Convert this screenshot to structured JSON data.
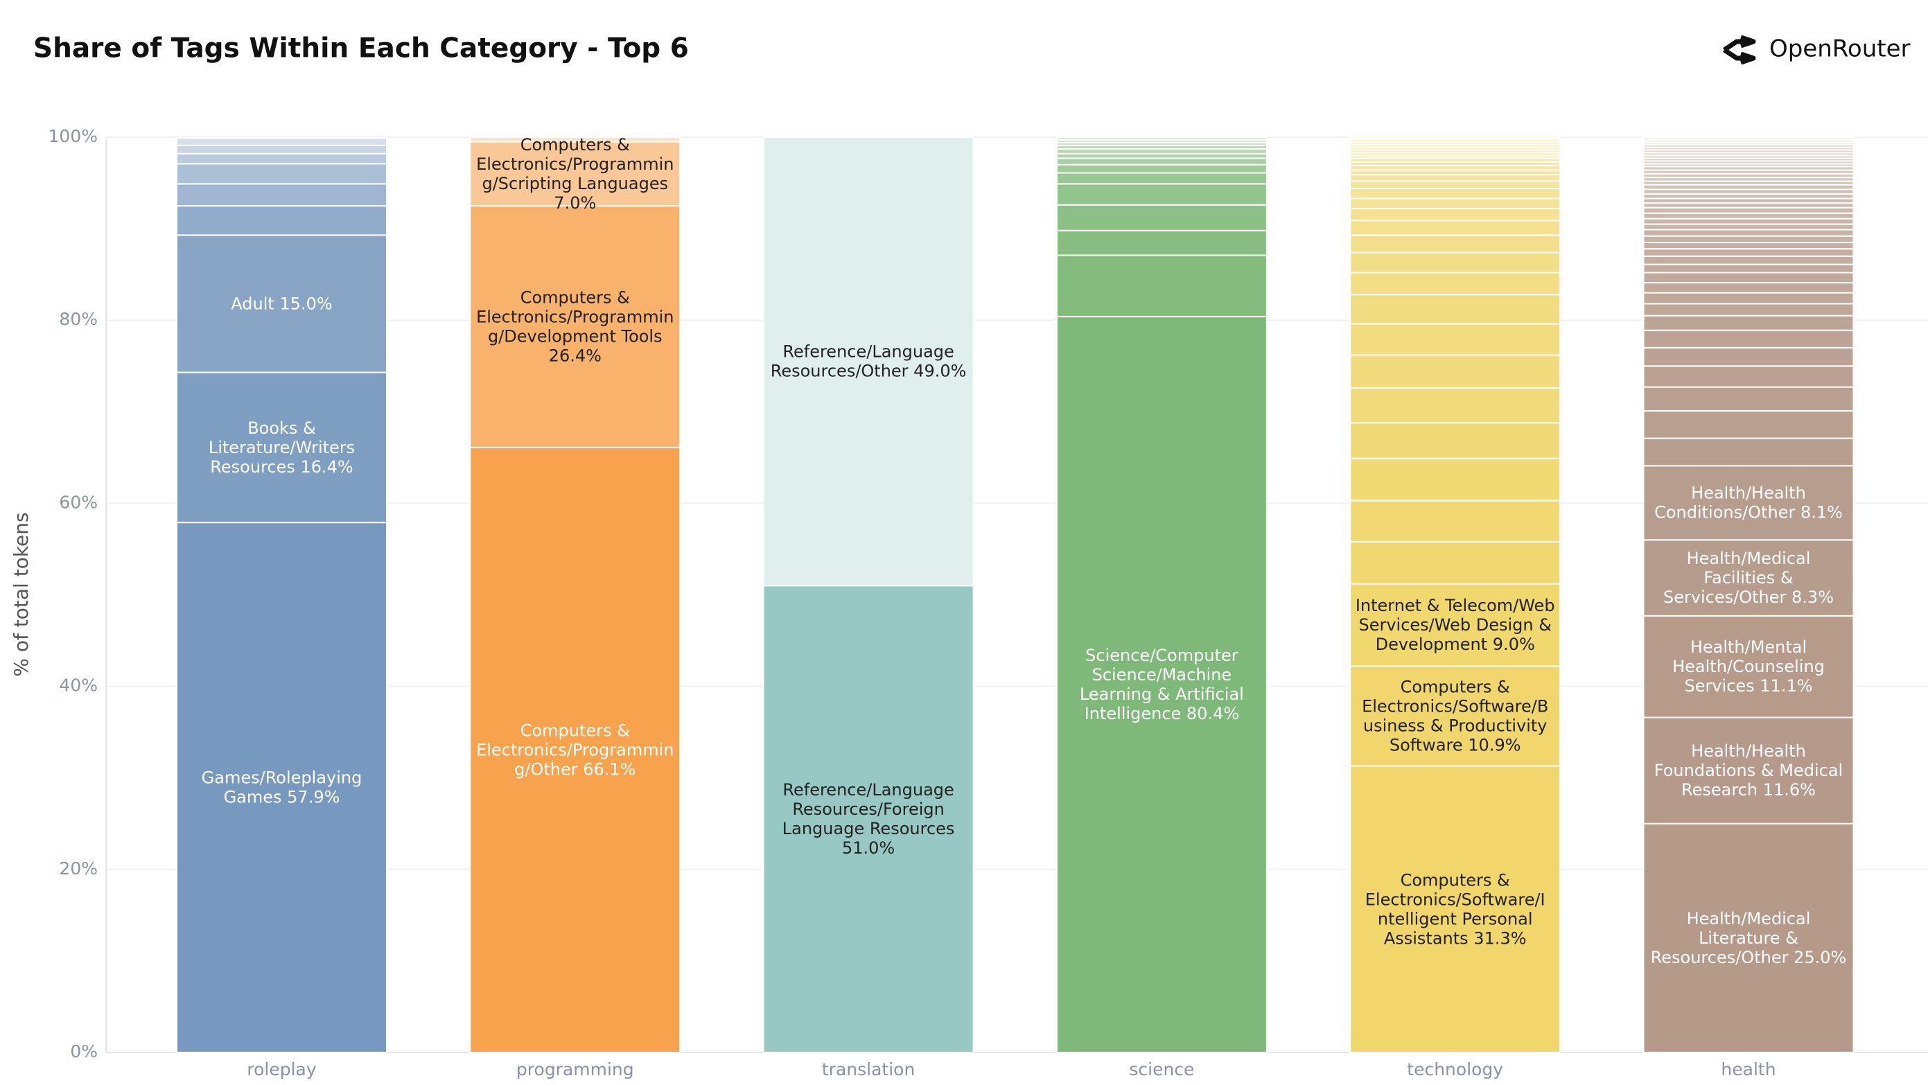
{
  "chart_data": {
    "type": "stacked-bar",
    "title": "Share of Tags Within Each Category - Top 6",
    "brand": "OpenRouter",
    "ylabel": "% of total tokens",
    "ylim": [
      0,
      100
    ],
    "yticks": [
      {
        "value": 0,
        "label": "0%"
      },
      {
        "value": 20,
        "label": "20%"
      },
      {
        "value": 40,
        "label": "40%"
      },
      {
        "value": 60,
        "label": "60%"
      },
      {
        "value": 80,
        "label": "80%"
      },
      {
        "value": 100,
        "label": "100%"
      }
    ],
    "grid": true,
    "columns": [
      {
        "category": "roleplay",
        "color": "#7899bf",
        "segments": [
          {
            "label": "Games/Roleplaying Games 57.9%",
            "value": 57.9,
            "label_color": "#ffffff"
          },
          {
            "label": "Books & Literature/Writers Resources 16.4%",
            "value": 16.4,
            "label_color": "#ffffff"
          },
          {
            "label": "Adult 15.0%",
            "value": 15.0,
            "label_color": "#ffffff"
          },
          {
            "value": 3.2
          },
          {
            "value": 2.4
          },
          {
            "value": 2.2
          },
          {
            "value": 1.1
          },
          {
            "value": 0.9
          },
          {
            "value": 0.8
          }
        ]
      },
      {
        "category": "programming",
        "color": "#f7a24d",
        "segments": [
          {
            "label": "Computers & Electronics/Programming/Other 66.1%",
            "value": 66.1,
            "label_color": "#ffffff"
          },
          {
            "label": "Computers & Electronics/Programming/Development Tools 26.4%",
            "value": 26.4,
            "label_color": "#222222"
          },
          {
            "label": "Computers & Electronics/Programming/Scripting Languages 7.0%",
            "value": 7.0,
            "label_color": "#222222"
          },
          {
            "value": 0.5
          }
        ]
      },
      {
        "category": "translation",
        "color": "#97c8c3",
        "segments": [
          {
            "label": "Reference/Language Resources/Foreign Language Resources 51.0%",
            "value": 51.0,
            "label_color": "#222222"
          },
          {
            "label": "Reference/Language Resources/Other 49.0%",
            "value": 49.0,
            "label_color": "#222222"
          }
        ]
      },
      {
        "category": "science",
        "color": "#7fb979",
        "segments": [
          {
            "label": "Science/Computer Science/Machine Learning & Artificial Intelligence 80.4%",
            "value": 80.4,
            "label_color": "#ffffff"
          },
          {
            "value": 6.7
          },
          {
            "value": 2.7
          },
          {
            "value": 2.8
          },
          {
            "value": 2.3
          },
          {
            "value": 1.2
          },
          {
            "value": 0.9
          },
          {
            "value": 0.7
          },
          {
            "value": 0.5
          },
          {
            "value": 0.5
          },
          {
            "value": 0.4
          },
          {
            "value": 0.3
          },
          {
            "value": 0.3
          },
          {
            "value": 0.3
          }
        ]
      },
      {
        "category": "technology",
        "color": "#f0d66b",
        "segments": [
          {
            "label": "Computers & Electronics/Software/Intelligent Personal Assistants 31.3%",
            "value": 31.3,
            "label_color": "#222222"
          },
          {
            "label": "Computers & Electronics/Software/Business & Productivity Software 10.9%",
            "value": 10.9,
            "label_color": "#222222"
          },
          {
            "label": "Internet & Telecom/Web Services/Web Design & Development 9.0%",
            "value": 9.0,
            "label_color": "#222222"
          },
          {
            "value": 4.6
          },
          {
            "value": 4.5
          },
          {
            "value": 4.6
          },
          {
            "value": 3.9
          },
          {
            "value": 3.8
          },
          {
            "value": 3.6
          },
          {
            "value": 3.4
          },
          {
            "value": 3.2
          },
          {
            "value": 2.4
          },
          {
            "value": 2.2
          },
          {
            "value": 1.9
          },
          {
            "value": 1.6
          },
          {
            "value": 1.3
          },
          {
            "value": 1.1
          },
          {
            "value": 1.1
          },
          {
            "value": 0.8
          },
          {
            "value": 0.7
          },
          {
            "value": 0.5
          },
          {
            "value": 0.5
          },
          {
            "value": 0.4
          },
          {
            "value": 0.4
          },
          {
            "value": 0.3
          },
          {
            "value": 0.3
          },
          {
            "value": 0.3
          },
          {
            "value": 0.3
          },
          {
            "value": 0.3
          },
          {
            "value": 0.3
          },
          {
            "value": 0.3
          },
          {
            "value": 0.2
          },
          {
            "value": 0.2
          }
        ]
      },
      {
        "category": "health",
        "color": "#b59a8a",
        "segments": [
          {
            "label": "Health/Medical Literature & Resources/Other 25.0%",
            "value": 25.0,
            "label_color": "#ffffff"
          },
          {
            "label": "Health/Health Foundations & Medical Research 11.6%",
            "value": 11.6,
            "label_color": "#ffffff"
          },
          {
            "label": "Health/Mental Health/Counseling Services 11.1%",
            "value": 11.1,
            "label_color": "#ffffff"
          },
          {
            "label": "Health/Medical Facilities & Services/Other 8.3%",
            "value": 8.3,
            "label_color": "#ffffff"
          },
          {
            "label": "Health/Health Conditions/Other 8.1%",
            "value": 8.1,
            "label_color": "#ffffff"
          },
          {
            "value": 3.0
          },
          {
            "value": 3.0
          },
          {
            "value": 2.6
          },
          {
            "value": 2.3
          },
          {
            "value": 2.0
          },
          {
            "value": 1.9
          },
          {
            "value": 1.6
          },
          {
            "value": 1.3
          },
          {
            "value": 1.2
          },
          {
            "value": 1.1
          },
          {
            "value": 1.1
          },
          {
            "value": 0.9
          },
          {
            "value": 0.9
          },
          {
            "value": 0.8
          },
          {
            "value": 0.7
          },
          {
            "value": 0.7
          },
          {
            "value": 0.7
          },
          {
            "value": 0.6
          },
          {
            "value": 0.6
          },
          {
            "value": 0.6
          },
          {
            "value": 0.6
          },
          {
            "value": 0.5
          },
          {
            "value": 0.5
          },
          {
            "value": 0.5
          },
          {
            "value": 0.5
          },
          {
            "value": 0.5
          },
          {
            "value": 0.4
          },
          {
            "value": 0.4
          },
          {
            "value": 0.4
          },
          {
            "value": 0.4
          },
          {
            "value": 0.4
          },
          {
            "value": 0.3
          },
          {
            "value": 0.3
          },
          {
            "value": 0.3
          },
          {
            "value": 0.3
          },
          {
            "value": 0.3
          },
          {
            "value": 0.3
          },
          {
            "value": 0.3
          },
          {
            "value": 0.3
          },
          {
            "value": 0.2
          },
          {
            "value": 0.2
          },
          {
            "value": 0.2
          },
          {
            "value": 0.2
          }
        ]
      }
    ]
  }
}
